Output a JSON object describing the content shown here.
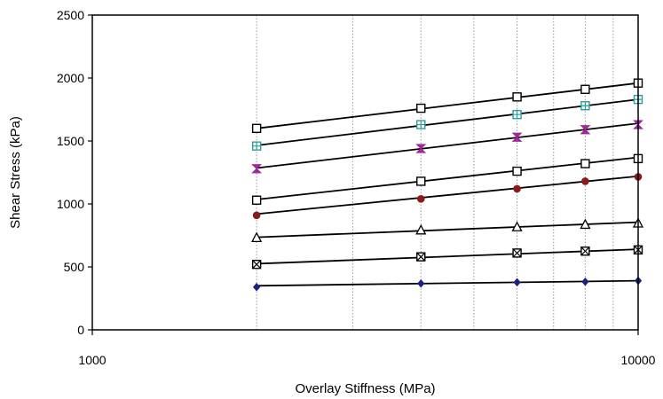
{
  "chart_data": {
    "type": "line",
    "title": "",
    "xlabel": "Overlay Stiffness (MPa)",
    "ylabel": "Shear Stress (kPa)",
    "x_scale": "log",
    "xlim": [
      1000,
      10000
    ],
    "ylim": [
      0,
      2500
    ],
    "x_ticks": [
      "1000",
      "10000"
    ],
    "y_ticks": [
      "0",
      "500",
      "1000",
      "1500",
      "2000",
      "2500"
    ],
    "grid": "vertical dotted, log minor",
    "legend": "none",
    "x": [
      2000,
      4000,
      6000,
      8000,
      10000
    ],
    "series": [
      {
        "values": [
          1600,
          1760,
          1850,
          1910,
          1960
        ],
        "marker": "square",
        "marker_color": "#000000",
        "fit": [
          1600,
          1960
        ]
      },
      {
        "values": [
          1460,
          1630,
          1710,
          1780,
          1830
        ],
        "marker": "square-cross",
        "marker_color": "#2e9c9c",
        "fit": [
          1465,
          1830
        ]
      },
      {
        "values": [
          1280,
          1440,
          1530,
          1590,
          1630
        ],
        "marker": "hourglass",
        "marker_color": "#a0289a",
        "fit": [
          1285,
          1640
        ]
      },
      {
        "values": [
          1030,
          1180,
          1260,
          1320,
          1360
        ],
        "marker": "square",
        "marker_color": "#000000",
        "fit": [
          1035,
          1370
        ]
      },
      {
        "values": [
          910,
          1040,
          1120,
          1180,
          1215
        ],
        "marker": "circle",
        "marker_color": "#8b1a1a",
        "fit": [
          920,
          1220
        ]
      },
      {
        "values": [
          730,
          790,
          815,
          835,
          845
        ],
        "marker": "triangle",
        "marker_color": "#000000",
        "fit": [
          735,
          855
        ]
      },
      {
        "values": [
          520,
          580,
          610,
          625,
          635
        ],
        "marker": "square-x",
        "marker_color": "#000000",
        "fit": [
          525,
          640
        ]
      },
      {
        "values": [
          340,
          368,
          378,
          382,
          390
        ],
        "marker": "diamond",
        "marker_color": "#1a237e",
        "fit": [
          350,
          390
        ]
      }
    ]
  }
}
